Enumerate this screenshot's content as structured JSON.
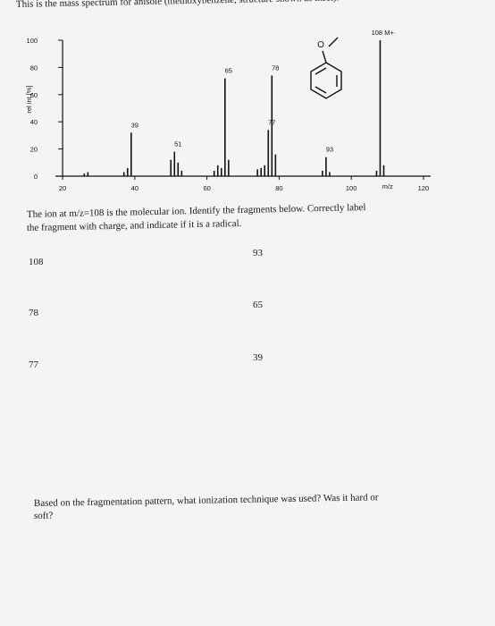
{
  "header": {
    "title": "This is the mass spectrum for anisole (methoxybenzene, structure shown as inset)."
  },
  "chart_data": {
    "type": "stick",
    "x": [
      26,
      27,
      37,
      38,
      39,
      50,
      51,
      52,
      53,
      62,
      63,
      64,
      65,
      66,
      74,
      75,
      76,
      77,
      78,
      79,
      92,
      93,
      94,
      107,
      108,
      109
    ],
    "values": [
      2,
      3,
      3,
      6,
      32,
      12,
      18,
      10,
      4,
      4,
      8,
      6,
      72,
      12,
      5,
      6,
      8,
      34,
      74,
      16,
      4,
      14,
      3,
      4,
      100,
      8
    ],
    "color": "#111111",
    "xlim": [
      18,
      122
    ],
    "xticks": [
      20,
      40,
      60,
      80,
      100,
      120
    ],
    "ylim": [
      0,
      100
    ],
    "yticks": [
      0,
      20,
      40,
      60,
      80,
      100
    ],
    "x_label": "m/z",
    "y_label": "rel int [%]",
    "annotations": [
      {
        "x": 39,
        "y": 32,
        "text": "39"
      },
      {
        "x": 51,
        "y": 18,
        "text": "51"
      },
      {
        "x": 65,
        "y": 72,
        "text": "65"
      },
      {
        "x": 78,
        "y": 74,
        "text": "78"
      },
      {
        "x": 77,
        "y": 34,
        "text": "77"
      },
      {
        "x": 93,
        "y": 14,
        "text": "93"
      },
      {
        "x": 108,
        "y": 100,
        "text": "108 M+·"
      }
    ],
    "inset_atom": "O"
  },
  "instructions": [
    "The ion at m/z=108 is the molecular ion. Identify the fragments below. Correctly label",
    "the fragment with charge, and indicate if it is a radical."
  ],
  "fragments": [
    "108",
    "93",
    "78",
    "65",
    "77",
    "39"
  ],
  "question": [
    "Based on the fragmentation pattern, what ionization technique was used? Was it hard or",
    "soft?"
  ]
}
